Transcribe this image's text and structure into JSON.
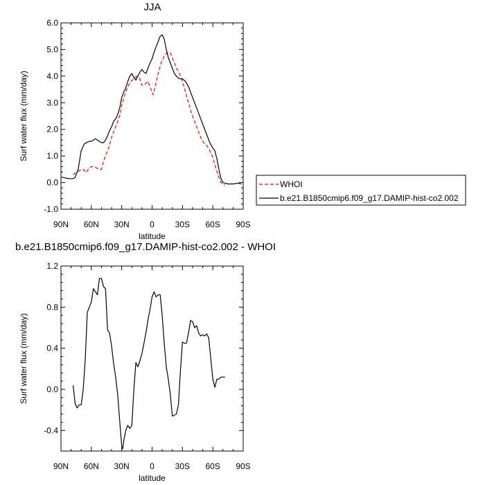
{
  "chart_data": [
    {
      "type": "line",
      "title": "JJA",
      "xlabel": "latitude",
      "ylabel": "Surf water flux (mm/day)",
      "xlim": [
        90,
        -90
      ],
      "ylim": [
        -1.0,
        6.0
      ],
      "x_tick_values": [
        90,
        60,
        30,
        0,
        -30,
        -60,
        -90
      ],
      "x_tick_labels": [
        "90N",
        "60N",
        "30N",
        "0",
        "30S",
        "60S",
        "90S"
      ],
      "y_tick_values": [
        -1.0,
        0.0,
        1.0,
        2.0,
        3.0,
        4.0,
        5.0,
        6.0
      ],
      "y_tick_labels": [
        "-1.0",
        "0.0",
        "1.0",
        "2.0",
        "3.0",
        "4.0",
        "5.0",
        "6.0"
      ],
      "legend_position": "outside-right",
      "series": [
        {
          "name": "WHOI",
          "color": "#ff0000",
          "dash": "dashed",
          "x": [
            78,
            76,
            72,
            68,
            65,
            62,
            60,
            57,
            55,
            52,
            50,
            48,
            45,
            42,
            40,
            37,
            35,
            32,
            30,
            27,
            24,
            21,
            18,
            15,
            12,
            10,
            7,
            4,
            1,
            -1,
            -3,
            -6,
            -9,
            -12,
            -15,
            -18,
            -21,
            -24,
            -27,
            -30,
            -33,
            -36,
            -39,
            -42,
            -45,
            -48,
            -51,
            -54,
            -57,
            -60,
            -63,
            -66,
            -68,
            -70,
            -72
          ],
          "y": [
            0.3,
            0.35,
            0.45,
            0.5,
            0.38,
            0.55,
            0.6,
            0.6,
            0.55,
            0.5,
            0.5,
            0.8,
            1.1,
            1.4,
            1.7,
            2.0,
            2.2,
            2.5,
            2.9,
            3.3,
            3.6,
            3.8,
            3.9,
            4.0,
            3.9,
            3.65,
            3.7,
            3.8,
            3.5,
            3.3,
            3.6,
            4.1,
            4.5,
            4.75,
            4.88,
            4.88,
            4.6,
            4.3,
            4.1,
            3.8,
            3.4,
            3.0,
            2.6,
            2.3,
            2.0,
            1.7,
            1.5,
            1.4,
            1.2,
            0.95,
            0.55,
            0.2,
            0.0,
            -0.05,
            -0.1
          ]
        },
        {
          "name": "b.e21.B1850cmip6.f09_g17.DAMIP-hist-co2.002",
          "color": "#000000",
          "dash": "solid",
          "x": [
            88,
            86,
            84,
            82,
            80,
            78,
            76,
            73,
            70,
            67,
            64,
            62,
            60,
            58,
            56,
            54,
            52,
            50,
            48,
            46,
            44,
            42,
            40,
            38,
            35,
            32,
            30,
            28,
            26,
            24,
            22,
            20,
            18,
            16,
            14,
            12,
            10,
            8,
            6,
            4,
            2,
            0,
            -2,
            -4,
            -6,
            -8,
            -10,
            -12,
            -14,
            -16,
            -18,
            -20,
            -22,
            -24,
            -27,
            -30,
            -33,
            -36,
            -39,
            -42,
            -45,
            -48,
            -51,
            -54,
            -57,
            -60,
            -62,
            -64,
            -66,
            -68,
            -70,
            -72,
            -75,
            -80,
            -85,
            -88
          ],
          "y": [
            0.2,
            0.18,
            0.16,
            0.15,
            0.15,
            0.15,
            0.2,
            0.5,
            1.2,
            1.45,
            1.52,
            1.55,
            1.55,
            1.6,
            1.65,
            1.6,
            1.55,
            1.5,
            1.5,
            1.6,
            1.75,
            1.95,
            2.1,
            2.3,
            2.45,
            2.8,
            3.2,
            3.4,
            3.55,
            3.8,
            4.0,
            4.1,
            3.95,
            3.85,
            4.0,
            4.15,
            4.25,
            4.15,
            4.1,
            4.3,
            4.5,
            4.65,
            4.9,
            5.1,
            5.3,
            5.5,
            5.55,
            5.4,
            5.0,
            4.7,
            4.5,
            4.3,
            4.1,
            4.0,
            3.9,
            3.9,
            3.8,
            3.6,
            3.3,
            3.0,
            2.7,
            2.4,
            2.1,
            1.8,
            1.5,
            1.3,
            1.2,
            0.9,
            0.5,
            0.15,
            0.0,
            -0.02,
            -0.05,
            -0.05,
            -0.02,
            -0.05
          ]
        }
      ]
    },
    {
      "type": "line",
      "title": "b.e21.B1850cmip6.f09_g17.DAMIP-hist-co2.002 - WHOI",
      "xlabel": "latitude",
      "ylabel": "Surf water flux (mm/day)",
      "xlim": [
        90,
        -90
      ],
      "ylim": [
        -0.6,
        1.2
      ],
      "x_tick_values": [
        90,
        60,
        30,
        0,
        -30,
        -60,
        -90
      ],
      "x_tick_labels": [
        "90N",
        "60N",
        "30N",
        "0",
        "30S",
        "60S",
        "90S"
      ],
      "y_tick_values": [
        -0.4,
        0.0,
        0.4,
        0.8,
        1.2
      ],
      "y_tick_labels": [
        "-0.4",
        "0.0",
        "0.4",
        "0.8",
        "1.2"
      ],
      "series": [
        {
          "color": "#000000",
          "dash": "solid",
          "x": [
            78,
            76,
            74,
            72,
            70,
            68,
            66,
            64,
            62,
            60,
            58,
            56,
            54,
            52,
            50,
            48,
            46,
            44,
            42,
            40,
            38,
            36,
            34,
            32,
            30,
            29,
            28,
            26,
            24,
            22,
            20,
            18,
            16,
            14,
            12,
            10,
            8,
            6,
            4,
            2,
            0,
            -2,
            -4,
            -6,
            -8,
            -10,
            -12,
            -14,
            -16,
            -18,
            -20,
            -22,
            -24,
            -26,
            -28,
            -30,
            -32,
            -34,
            -36,
            -38,
            -40,
            -42,
            -44,
            -46,
            -48,
            -50,
            -52,
            -54,
            -56,
            -58,
            -60,
            -62,
            -64,
            -66,
            -68,
            -70,
            -72
          ],
          "y": [
            0.04,
            -0.14,
            -0.18,
            -0.15,
            -0.15,
            0.0,
            0.3,
            0.75,
            0.8,
            0.85,
            0.98,
            0.95,
            0.92,
            1.08,
            1.08,
            1.0,
            0.98,
            0.58,
            0.55,
            0.42,
            0.25,
            0.12,
            -0.05,
            -0.3,
            -0.55,
            -0.58,
            -0.5,
            -0.4,
            -0.35,
            -0.38,
            -0.35,
            0.0,
            0.26,
            0.22,
            0.28,
            0.35,
            0.45,
            0.55,
            0.68,
            0.78,
            0.9,
            0.95,
            0.9,
            0.92,
            0.92,
            0.72,
            0.45,
            0.22,
            0.1,
            -0.05,
            -0.26,
            -0.25,
            -0.24,
            -0.15,
            0.18,
            0.46,
            0.45,
            0.45,
            0.55,
            0.67,
            0.66,
            0.6,
            0.62,
            0.55,
            0.52,
            0.53,
            0.52,
            0.54,
            0.5,
            0.3,
            0.1,
            0.02,
            0.1,
            0.1,
            0.12,
            0.12,
            0.12
          ]
        }
      ]
    }
  ]
}
